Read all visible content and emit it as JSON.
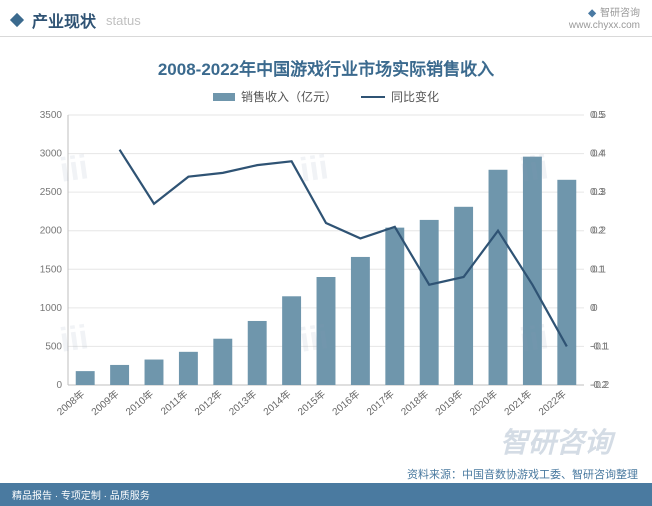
{
  "header": {
    "title": "产业现状",
    "subtitle": "status",
    "brand": "智研咨询",
    "brand_url": "www.chyxx.com"
  },
  "chart": {
    "type": "bar+line",
    "title": "2008-2022年中国游戏行业市场实际销售收入",
    "legend_bar": "销售收入（亿元）",
    "legend_line": "同比变化",
    "categories": [
      "2008年",
      "2009年",
      "2010年",
      "2011年",
      "2012年",
      "2013年",
      "2014年",
      "2015年",
      "2016年",
      "2017年",
      "2018年",
      "2019年",
      "2020年",
      "2021年",
      "2022年"
    ],
    "bar_values": [
      180,
      260,
      330,
      430,
      600,
      830,
      1150,
      1400,
      1660,
      2040,
      2140,
      2310,
      2790,
      2960,
      2660
    ],
    "line_values": [
      null,
      0.41,
      0.27,
      0.34,
      0.35,
      0.37,
      0.38,
      0.22,
      0.18,
      0.21,
      0.06,
      0.08,
      0.2,
      0.06,
      -0.1
    ],
    "left_axis": {
      "min": 0,
      "max": 3500,
      "step": 500,
      "label_fontsize": 10
    },
    "right_axis": {
      "min": -0.2,
      "max": 0.5,
      "step": 0.1,
      "label_fontsize": 10
    },
    "colors": {
      "bar": "#6f96ac",
      "line": "#2f5374",
      "grid": "#e6e6e6",
      "axis": "#bfbfbf",
      "title": "#3b6a8e",
      "background": "#ffffff"
    },
    "title_fontsize": 17,
    "legend_fontsize": 12,
    "bar_width_ratio": 0.55
  },
  "source": "资料来源：中国音数协游戏工委、智研咨询整理",
  "footer": {
    "left": "精品报告 · 专项定制 · 品质服务",
    "right": ""
  },
  "watermark": "智研咨询"
}
